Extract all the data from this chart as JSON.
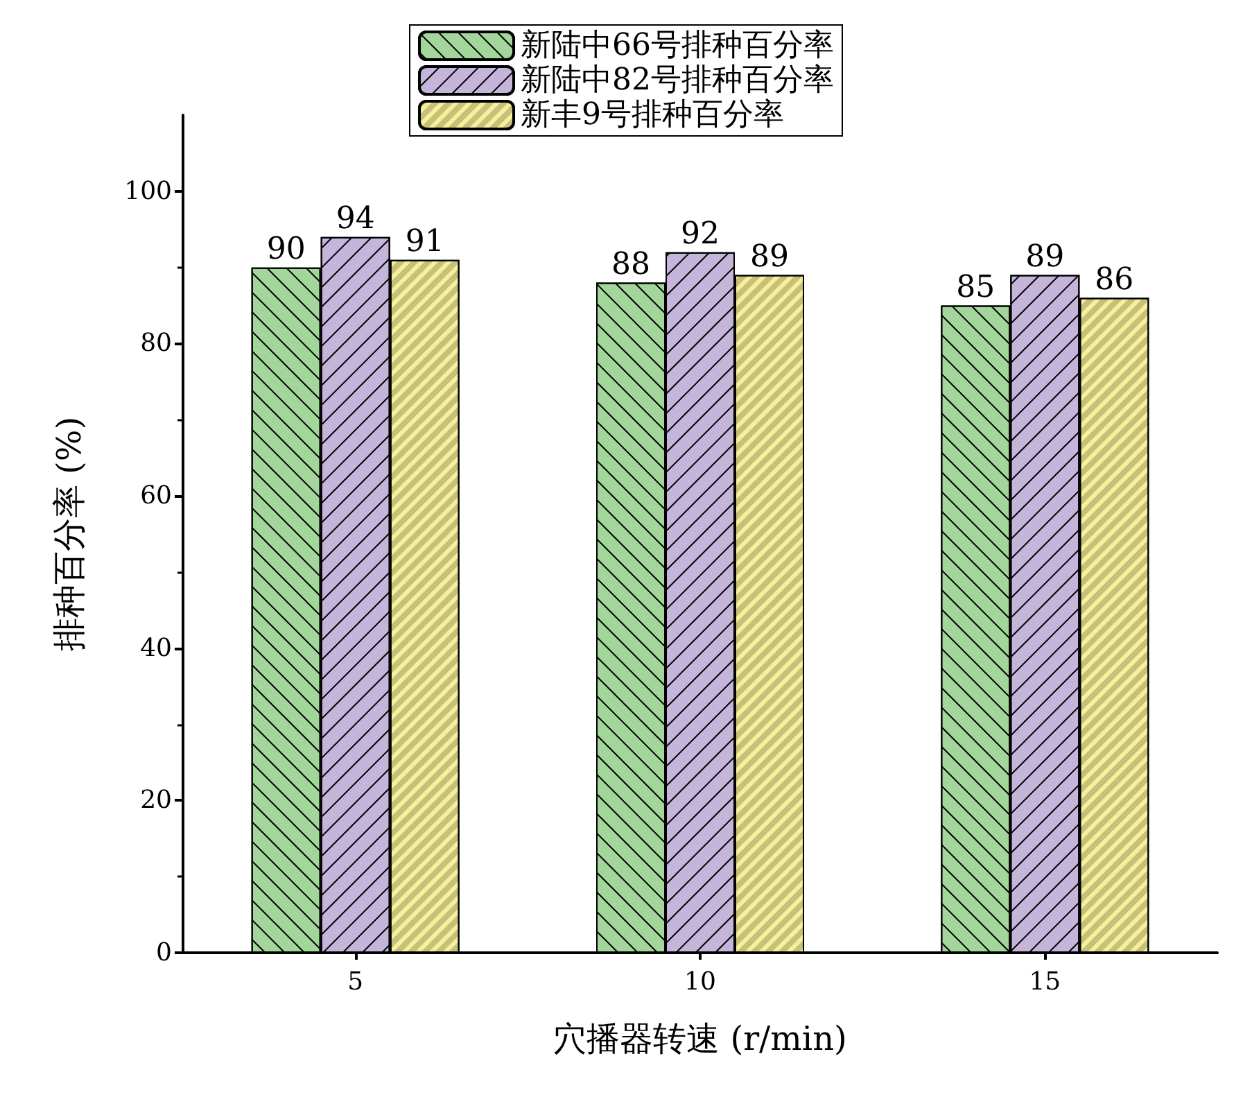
{
  "chart_data": {
    "type": "bar",
    "xlabel": "穴播器转速 (r/min)",
    "ylabel": "排种百分率 (%)",
    "categories": [
      "5",
      "10",
      "15"
    ],
    "series": [
      {
        "name": "新陆中66号排种百分率",
        "color": "#a3d69b",
        "values": [
          90,
          88,
          85
        ]
      },
      {
        "name": "新陆中82号排种百分率",
        "color": "#c6b5da",
        "values": [
          94,
          92,
          89
        ]
      },
      {
        "name": "新丰9号排种百分率",
        "color": "#f7f09a",
        "values": [
          91,
          89,
          86
        ]
      }
    ],
    "ylim": [
      0,
      110
    ],
    "yticks": [
      0,
      20,
      40,
      60,
      80,
      100
    ],
    "grid": false,
    "legend": "top",
    "data_labels": true
  }
}
